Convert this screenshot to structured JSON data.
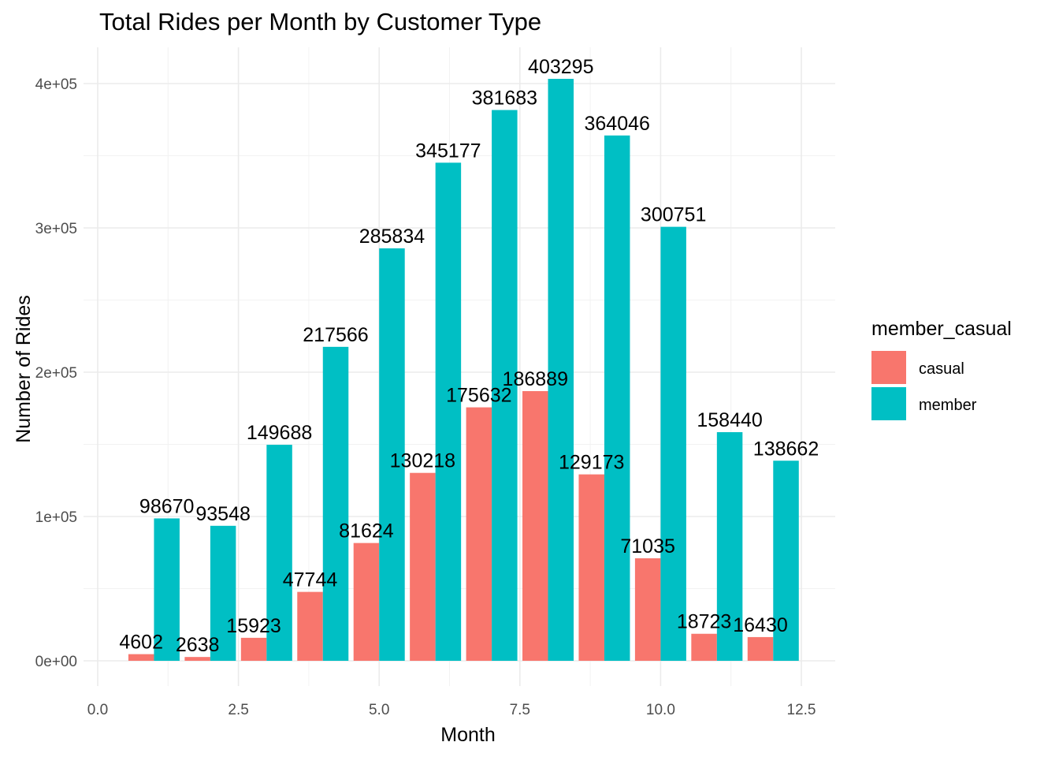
{
  "chart_data": {
    "type": "bar",
    "title": "Total Rides per Month by Customer Type",
    "xlabel": "Month",
    "ylabel": "Number of Rides",
    "x": [
      1,
      2,
      3,
      4,
      5,
      6,
      7,
      8,
      9,
      10,
      11,
      12
    ],
    "series": [
      {
        "name": "casual",
        "color": "#F8766D",
        "values": [
          4602,
          2638,
          15923,
          47744,
          81624,
          130218,
          175632,
          186889,
          129173,
          71035,
          18723,
          16430
        ]
      },
      {
        "name": "member",
        "color": "#00BFC4",
        "values": [
          98670,
          93548,
          149688,
          217566,
          285834,
          345177,
          381683,
          403295,
          364046,
          300751,
          158440,
          138662
        ]
      }
    ],
    "xlim": [
      0,
      12.5
    ],
    "ylim": [
      0,
      400000
    ],
    "x_ticks": [
      {
        "value": 0,
        "label": "0.0"
      },
      {
        "value": 2.5,
        "label": "2.5"
      },
      {
        "value": 5,
        "label": "5.0"
      },
      {
        "value": 7.5,
        "label": "7.5"
      },
      {
        "value": 10,
        "label": "10.0"
      },
      {
        "value": 12.5,
        "label": "12.5"
      }
    ],
    "y_ticks": [
      {
        "value": 0,
        "label": "0e+00"
      },
      {
        "value": 100000,
        "label": "1e+05"
      },
      {
        "value": 200000,
        "label": "2e+05"
      },
      {
        "value": 300000,
        "label": "3e+05"
      },
      {
        "value": 400000,
        "label": "4e+05"
      }
    ],
    "grid": true,
    "legend": {
      "title": "member_casual",
      "position": "right"
    },
    "theme": "minimal"
  }
}
